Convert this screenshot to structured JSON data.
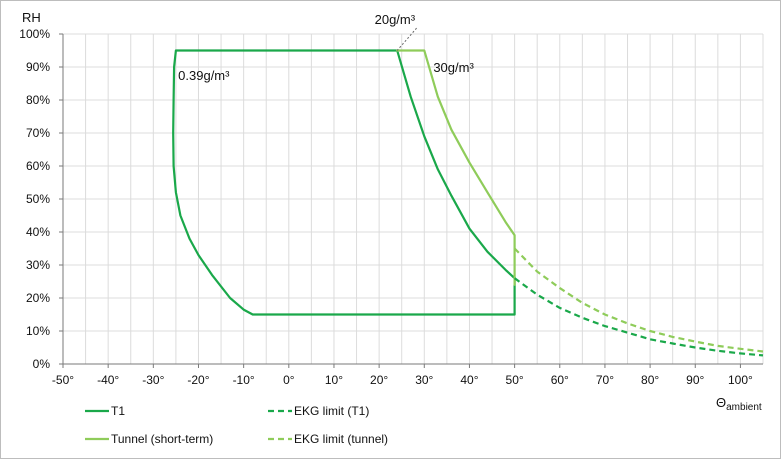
{
  "chart_data": {
    "type": "line",
    "ylabel": "RH",
    "xlabel_main": "Θ",
    "xlabel_sub": "ambient",
    "xlim": [
      -50,
      105
    ],
    "ylim": [
      0,
      100
    ],
    "x_ticks": [
      -50,
      -40,
      -30,
      -20,
      -10,
      0,
      10,
      20,
      30,
      40,
      50,
      60,
      70,
      80,
      90,
      100
    ],
    "x_tick_labels": [
      "-50°",
      "-40°",
      "-30°",
      "-20°",
      "-10°",
      "0°",
      "10°",
      "20°",
      "30°",
      "40°",
      "50°",
      "60°",
      "70°",
      "80°",
      "90°",
      "100°"
    ],
    "y_ticks": [
      0,
      10,
      20,
      30,
      40,
      50,
      60,
      70,
      80,
      90,
      100
    ],
    "y_tick_labels": [
      "0%",
      "10%",
      "20%",
      "30%",
      "40%",
      "50%",
      "60%",
      "70%",
      "80%",
      "90%",
      "100%"
    ],
    "grid": true,
    "legend_position": "bottom",
    "series": [
      {
        "name": "T1",
        "color": "#1aa84a",
        "dash": false,
        "points": [
          [
            -25,
            95
          ],
          [
            24,
            95
          ],
          [
            27,
            81
          ],
          [
            30,
            69
          ],
          [
            33,
            59
          ],
          [
            36,
            51
          ],
          [
            40,
            41
          ],
          [
            44,
            34
          ],
          [
            48,
            28.5
          ],
          [
            50,
            26
          ],
          [
            50,
            15
          ],
          [
            -8,
            15
          ],
          [
            -10,
            16.5
          ],
          [
            -13,
            20
          ],
          [
            -17,
            27
          ],
          [
            -20,
            33
          ],
          [
            -22,
            38
          ],
          [
            -24,
            45
          ],
          [
            -25,
            52
          ],
          [
            -25.5,
            60
          ],
          [
            -25.6,
            70
          ],
          [
            -25.5,
            80
          ],
          [
            -25.4,
            90
          ],
          [
            -25,
            95
          ]
        ]
      },
      {
        "name": "Tunnel (short-term)",
        "color": "#8fcc5a",
        "dash": false,
        "points": [
          [
            24,
            95
          ],
          [
            30,
            95
          ],
          [
            33,
            81
          ],
          [
            36,
            71
          ],
          [
            40,
            61
          ],
          [
            44,
            52
          ],
          [
            48,
            43
          ],
          [
            50,
            39
          ],
          [
            50,
            24
          ]
        ]
      },
      {
        "name": "EKG limit (T1)",
        "color": "#1aa84a",
        "dash": true,
        "points": [
          [
            50,
            26
          ],
          [
            55,
            21
          ],
          [
            60,
            17
          ],
          [
            65,
            14
          ],
          [
            70,
            11.5
          ],
          [
            75,
            9.5
          ],
          [
            80,
            7.5
          ],
          [
            85,
            6.2
          ],
          [
            90,
            5
          ],
          [
            95,
            4
          ],
          [
            100,
            3.2
          ],
          [
            105,
            2.6
          ]
        ]
      },
      {
        "name": "EKG limit (tunnel)",
        "color": "#8fcc5a",
        "dash": true,
        "points": [
          [
            50,
            35
          ],
          [
            55,
            28
          ],
          [
            60,
            23
          ],
          [
            65,
            18.5
          ],
          [
            70,
            15
          ],
          [
            75,
            12.3
          ],
          [
            80,
            10
          ],
          [
            85,
            8.2
          ],
          [
            90,
            6.8
          ],
          [
            95,
            5.5
          ],
          [
            100,
            4.6
          ],
          [
            105,
            3.8
          ]
        ]
      }
    ],
    "annotations": [
      {
        "text": "0.39g/m³",
        "x": -24.5,
        "y": 86,
        "anchor": "start"
      },
      {
        "text": "20g/m³",
        "x": 19,
        "y": 103,
        "anchor": "start",
        "leader_to": [
          24,
          95
        ]
      },
      {
        "text": "30g/m³",
        "x": 32,
        "y": 88.5,
        "anchor": "start"
      }
    ]
  }
}
